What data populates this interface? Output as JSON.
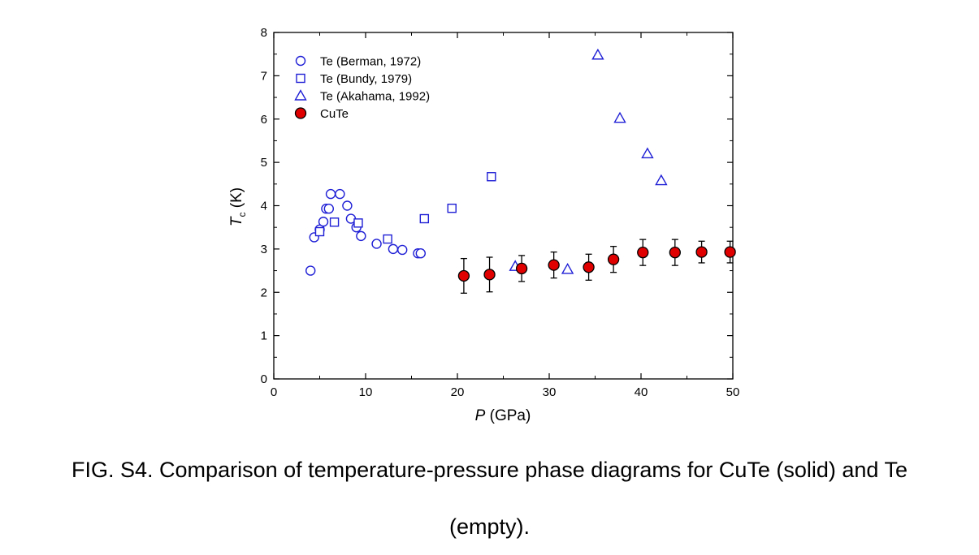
{
  "caption": {
    "line1": "FIG. S4. Comparison of temperature-pressure phase diagrams for CuTe (solid) and Te",
    "line2": "(empty)."
  },
  "chart_data": {
    "type": "scatter",
    "xlabel_italic": "P",
    "xlabel_rest": " (GPa)",
    "ylabel_italic": "T",
    "ylabel_sub": "c",
    "ylabel_rest": " (K)",
    "xlim": [
      0,
      50
    ],
    "ylim": [
      0,
      8
    ],
    "xticks": [
      0,
      10,
      20,
      30,
      40,
      50
    ],
    "yticks": [
      0,
      1,
      2,
      3,
      4,
      5,
      6,
      7,
      8
    ],
    "grid": false,
    "legend_position": "top-left",
    "series": [
      {
        "name": "Te (Berman, 1972)",
        "marker": "circle",
        "filled": false,
        "color": "#1f1fd6",
        "points": [
          [
            4.0,
            2.5
          ],
          [
            4.4,
            3.27
          ],
          [
            5.0,
            3.45
          ],
          [
            5.4,
            3.63
          ],
          [
            5.7,
            3.93
          ],
          [
            6.0,
            3.93
          ],
          [
            6.2,
            4.27
          ],
          [
            7.2,
            4.27
          ],
          [
            8.0,
            4.0
          ],
          [
            8.4,
            3.7
          ],
          [
            9.0,
            3.5
          ],
          [
            9.5,
            3.3
          ],
          [
            11.2,
            3.12
          ],
          [
            13.0,
            3.0
          ],
          [
            14.0,
            2.98
          ],
          [
            15.7,
            2.9
          ],
          [
            16.0,
            2.9
          ]
        ]
      },
      {
        "name": "Te (Bundy, 1979)",
        "marker": "square",
        "filled": false,
        "color": "#1f1fd6",
        "points": [
          [
            5.0,
            3.4
          ],
          [
            6.6,
            3.62
          ],
          [
            9.2,
            3.6
          ],
          [
            12.4,
            3.23
          ],
          [
            16.4,
            3.7
          ],
          [
            19.4,
            3.94
          ],
          [
            23.7,
            4.67
          ]
        ]
      },
      {
        "name": "Te (Akahama, 1992)",
        "marker": "triangle",
        "filled": false,
        "color": "#1f1fd6",
        "points": [
          [
            26.3,
            2.6
          ],
          [
            32.0,
            2.53
          ],
          [
            35.3,
            7.48
          ],
          [
            37.7,
            6.02
          ],
          [
            40.7,
            5.2
          ],
          [
            42.2,
            4.58
          ]
        ]
      },
      {
        "name": "CuTe",
        "marker": "circle",
        "filled": true,
        "color": "#e00000",
        "points": [
          [
            20.7,
            2.38
          ],
          [
            23.5,
            2.41
          ],
          [
            27.0,
            2.55
          ],
          [
            30.5,
            2.63
          ],
          [
            34.3,
            2.58
          ],
          [
            37.0,
            2.76
          ],
          [
            40.2,
            2.92
          ],
          [
            43.7,
            2.92
          ],
          [
            46.6,
            2.93
          ],
          [
            49.7,
            2.93
          ]
        ],
        "errors": [
          0.4,
          0.4,
          0.3,
          0.3,
          0.3,
          0.3,
          0.3,
          0.3,
          0.25,
          0.25
        ]
      }
    ]
  }
}
